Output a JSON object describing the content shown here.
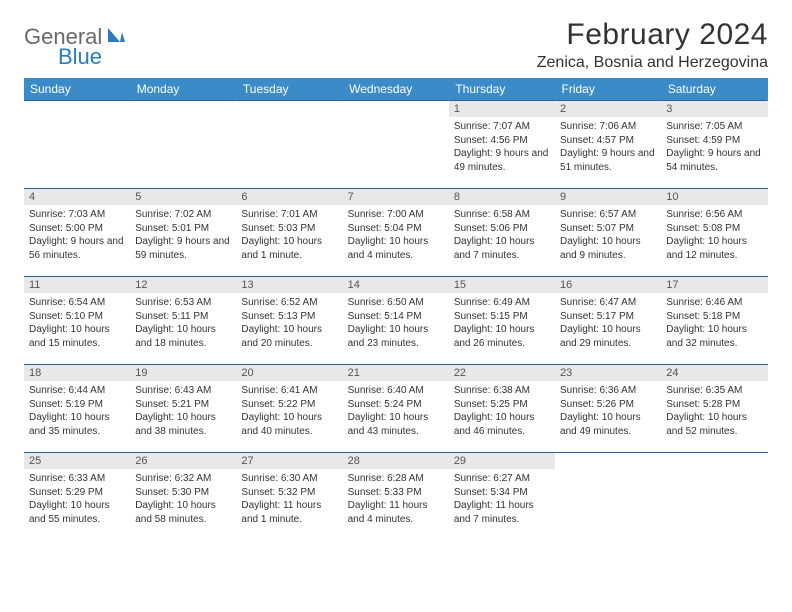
{
  "logo": {
    "word1": "General",
    "word2": "Blue"
  },
  "title": "February 2024",
  "location": "Zenica, Bosnia and Herzegovina",
  "columns": [
    "Sunday",
    "Monday",
    "Tuesday",
    "Wednesday",
    "Thursday",
    "Friday",
    "Saturday"
  ],
  "header_bg": "#3b8bc9",
  "row_border": "#2b5f8f",
  "daybar_bg": "#e8e8e8",
  "weeks": [
    [
      null,
      null,
      null,
      null,
      {
        "n": "1",
        "sr": "7:07 AM",
        "ss": "4:56 PM",
        "dl": "9 hours and 49 minutes."
      },
      {
        "n": "2",
        "sr": "7:06 AM",
        "ss": "4:57 PM",
        "dl": "9 hours and 51 minutes."
      },
      {
        "n": "3",
        "sr": "7:05 AM",
        "ss": "4:59 PM",
        "dl": "9 hours and 54 minutes."
      }
    ],
    [
      {
        "n": "4",
        "sr": "7:03 AM",
        "ss": "5:00 PM",
        "dl": "9 hours and 56 minutes."
      },
      {
        "n": "5",
        "sr": "7:02 AM",
        "ss": "5:01 PM",
        "dl": "9 hours and 59 minutes."
      },
      {
        "n": "6",
        "sr": "7:01 AM",
        "ss": "5:03 PM",
        "dl": "10 hours and 1 minute."
      },
      {
        "n": "7",
        "sr": "7:00 AM",
        "ss": "5:04 PM",
        "dl": "10 hours and 4 minutes."
      },
      {
        "n": "8",
        "sr": "6:58 AM",
        "ss": "5:06 PM",
        "dl": "10 hours and 7 minutes."
      },
      {
        "n": "9",
        "sr": "6:57 AM",
        "ss": "5:07 PM",
        "dl": "10 hours and 9 minutes."
      },
      {
        "n": "10",
        "sr": "6:56 AM",
        "ss": "5:08 PM",
        "dl": "10 hours and 12 minutes."
      }
    ],
    [
      {
        "n": "11",
        "sr": "6:54 AM",
        "ss": "5:10 PM",
        "dl": "10 hours and 15 minutes."
      },
      {
        "n": "12",
        "sr": "6:53 AM",
        "ss": "5:11 PM",
        "dl": "10 hours and 18 minutes."
      },
      {
        "n": "13",
        "sr": "6:52 AM",
        "ss": "5:13 PM",
        "dl": "10 hours and 20 minutes."
      },
      {
        "n": "14",
        "sr": "6:50 AM",
        "ss": "5:14 PM",
        "dl": "10 hours and 23 minutes."
      },
      {
        "n": "15",
        "sr": "6:49 AM",
        "ss": "5:15 PM",
        "dl": "10 hours and 26 minutes."
      },
      {
        "n": "16",
        "sr": "6:47 AM",
        "ss": "5:17 PM",
        "dl": "10 hours and 29 minutes."
      },
      {
        "n": "17",
        "sr": "6:46 AM",
        "ss": "5:18 PM",
        "dl": "10 hours and 32 minutes."
      }
    ],
    [
      {
        "n": "18",
        "sr": "6:44 AM",
        "ss": "5:19 PM",
        "dl": "10 hours and 35 minutes."
      },
      {
        "n": "19",
        "sr": "6:43 AM",
        "ss": "5:21 PM",
        "dl": "10 hours and 38 minutes."
      },
      {
        "n": "20",
        "sr": "6:41 AM",
        "ss": "5:22 PM",
        "dl": "10 hours and 40 minutes."
      },
      {
        "n": "21",
        "sr": "6:40 AM",
        "ss": "5:24 PM",
        "dl": "10 hours and 43 minutes."
      },
      {
        "n": "22",
        "sr": "6:38 AM",
        "ss": "5:25 PM",
        "dl": "10 hours and 46 minutes."
      },
      {
        "n": "23",
        "sr": "6:36 AM",
        "ss": "5:26 PM",
        "dl": "10 hours and 49 minutes."
      },
      {
        "n": "24",
        "sr": "6:35 AM",
        "ss": "5:28 PM",
        "dl": "10 hours and 52 minutes."
      }
    ],
    [
      {
        "n": "25",
        "sr": "6:33 AM",
        "ss": "5:29 PM",
        "dl": "10 hours and 55 minutes."
      },
      {
        "n": "26",
        "sr": "6:32 AM",
        "ss": "5:30 PM",
        "dl": "10 hours and 58 minutes."
      },
      {
        "n": "27",
        "sr": "6:30 AM",
        "ss": "5:32 PM",
        "dl": "11 hours and 1 minute."
      },
      {
        "n": "28",
        "sr": "6:28 AM",
        "ss": "5:33 PM",
        "dl": "11 hours and 4 minutes."
      },
      {
        "n": "29",
        "sr": "6:27 AM",
        "ss": "5:34 PM",
        "dl": "11 hours and 7 minutes."
      },
      null,
      null
    ]
  ],
  "labels": {
    "sunrise": "Sunrise:",
    "sunset": "Sunset:",
    "daylight": "Daylight:"
  }
}
